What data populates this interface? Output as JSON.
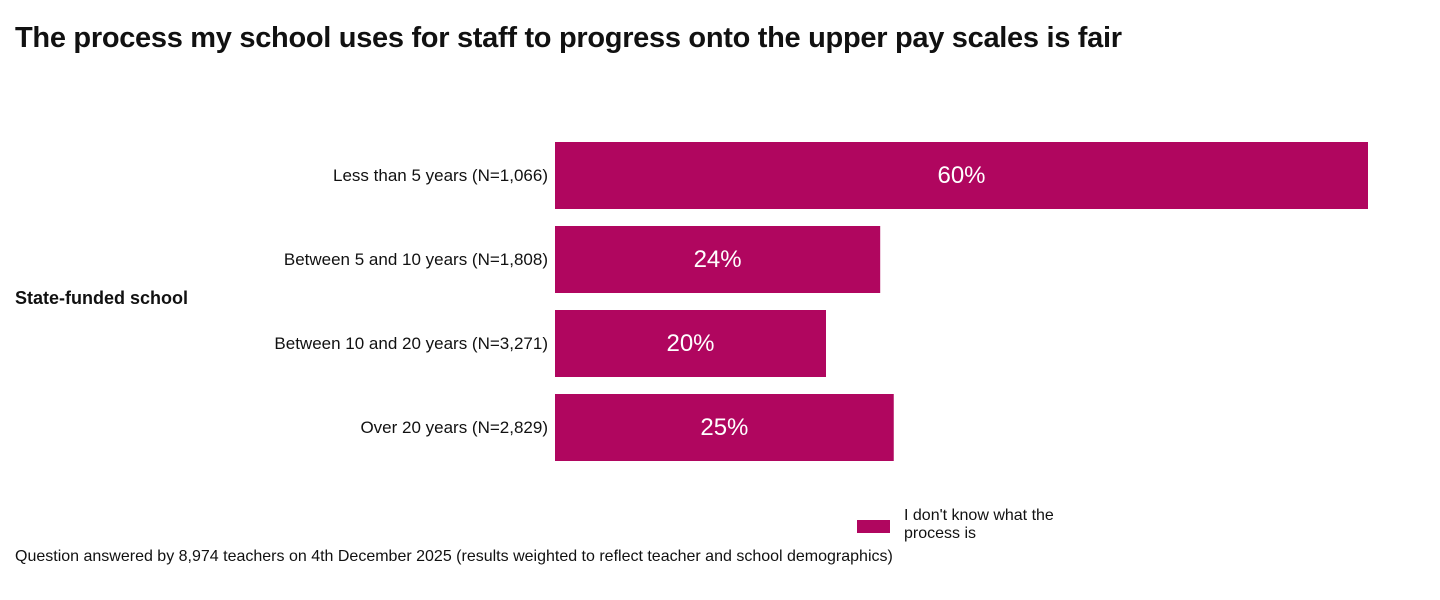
{
  "colors": {
    "bar": "#b0065f",
    "bar_label": "#ffffff",
    "text": "#111111"
  },
  "chart_data": {
    "type": "bar",
    "orientation": "horizontal",
    "title": "The process my school uses for staff to progress onto the upper pay scales is fair",
    "group_label": "State-funded school",
    "categories": [
      "Less than 5 years (N=1,066)",
      "Between 5 and 10 years (N=1,808)",
      "Between 10 and 20 years (N=3,271)",
      "Over 20 years (N=2,829)"
    ],
    "series": [
      {
        "name": "I don't know what the process is",
        "values": [
          60,
          24,
          20,
          25
        ],
        "value_labels": [
          "60%",
          "24%",
          "20%",
          "25%"
        ]
      }
    ],
    "xlim": [
      0,
      60
    ],
    "grid": false,
    "legend_position": "bottom-center"
  },
  "legend": {
    "label": "I don't know what the process is"
  },
  "footnote": "Question answered by 8,974 teachers on 4th December 2025 (results weighted to reflect teacher and school demographics)"
}
